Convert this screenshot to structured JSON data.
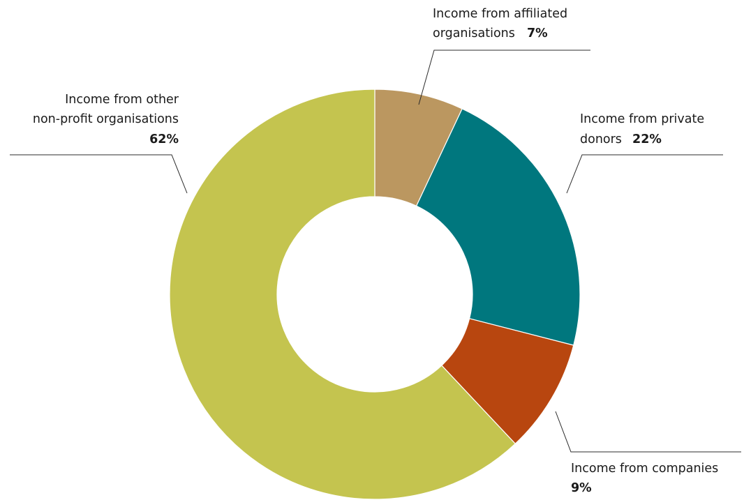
{
  "chart_data": {
    "type": "pie",
    "variant": "donut",
    "title": "",
    "start_angle_deg": 0,
    "direction": "clockwise",
    "slices": [
      {
        "name": "Income from affiliated organisations",
        "value": 7,
        "label_lines": [
          "Income from affiliated",
          "organisations"
        ],
        "value_label": "7%",
        "color": "#BB9760"
      },
      {
        "name": "Income from private donors",
        "value": 22,
        "label_lines": [
          "Income from private",
          "donors"
        ],
        "value_label": "22%",
        "color": "#00777E"
      },
      {
        "name": "Income from companies",
        "value": 9,
        "label_lines": [
          "Income from companies"
        ],
        "value_label": "9%",
        "color": "#B8460F"
      },
      {
        "name": "Income from other non-profit organisations",
        "value": 62,
        "label_lines": [
          "Income from other",
          "non-profit organisations"
        ],
        "value_label": "62%",
        "color": "#C4C44F"
      }
    ]
  }
}
